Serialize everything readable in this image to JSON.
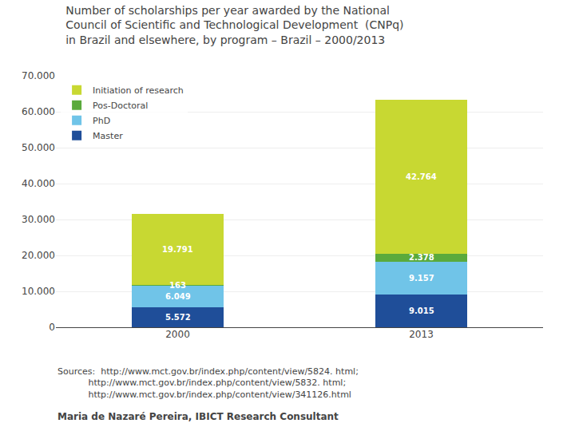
{
  "chart_data": {
    "type": "bar",
    "title": "Number of scholarships per year awarded by the National\nCouncil of Scientific and Technological Development  (CNPq)\nin Brazil and elsewhere, by program – Brazil – 2000/2013",
    "categories": [
      "2000",
      "2013"
    ],
    "series": [
      {
        "name": "Master",
        "color": "#1f4e99",
        "values": [
          5572,
          9015
        ],
        "value_labels": [
          "5.572",
          "9.015"
        ]
      },
      {
        "name": "PhD",
        "color": "#70c4e8",
        "values": [
          6049,
          9157
        ],
        "value_labels": [
          "6.049",
          "9.157"
        ]
      },
      {
        "name": "Pos-Doctoral",
        "color": "#5aaa3c",
        "values": [
          163,
          2378
        ],
        "value_labels": [
          "163",
          "2.378"
        ]
      },
      {
        "name": "Initiation of research",
        "color": "#c8d832",
        "values": [
          19791,
          42764
        ],
        "value_labels": [
          "19.791",
          "42.764"
        ]
      }
    ],
    "stacked": true,
    "data_labels": true,
    "ylim": [
      0,
      70000
    ],
    "yticks": [
      0,
      {
        "value": 10000,
        "label": "10.000"
      },
      {
        "value": 20000,
        "label": "20.000"
      },
      {
        "value": 30000,
        "label": "30.000"
      },
      {
        "value": 40000,
        "label": "40.000"
      },
      {
        "value": 50000,
        "label": "50.000"
      },
      {
        "value": 60000,
        "label": "60.000"
      },
      {
        "value": 70000,
        "label": "70.000"
      }
    ],
    "grid": true,
    "legend": "upper left",
    "annotations": [
      "Sources:  http://www.mct.gov.br/index.php/content/view/5824. html;\n           http://www.mct.gov.br/index.php/content/view/5832. html;\n           http://www.mct.gov.br/index.php/content/view/341126.html",
      "Maria de Nazaré Pereira, IBICT Research Consultant"
    ]
  }
}
